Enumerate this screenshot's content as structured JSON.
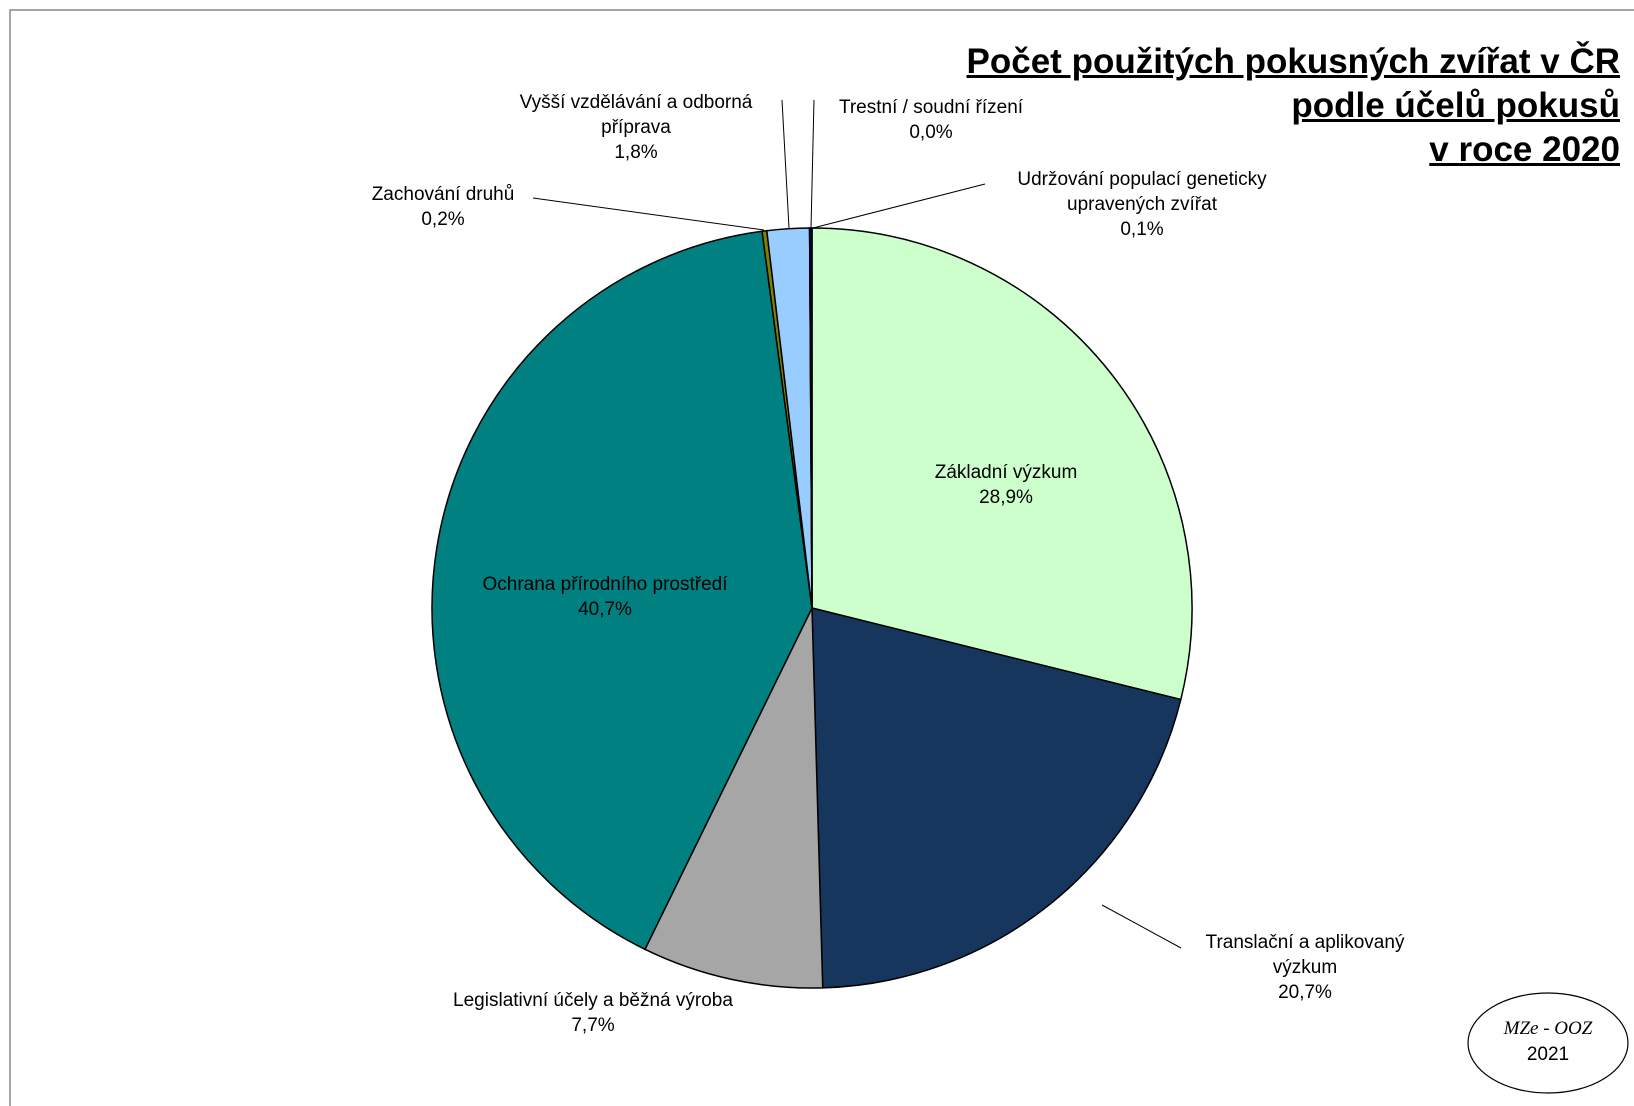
{
  "chart_data": {
    "type": "pie",
    "title": [
      "Počet použitých pokusných zvířat v ČR",
      "podle účelů pokusů",
      "v roce 2020"
    ],
    "categories": [
      "Základní výzkum",
      "Translační a aplikovaný výzkum",
      "Legislativní účely a běžná výroba",
      "Ochrana přírodního prostředí",
      "Zachování druhů",
      "Vyšší vzdělávání a odborná příprava",
      "Trestní / soudní řízení",
      "Udržování populací geneticky upravených zvířat"
    ],
    "values": [
      28.9,
      20.7,
      7.7,
      40.7,
      0.2,
      1.8,
      0.0,
      0.1
    ],
    "value_labels": [
      "28,9%",
      "20,7%",
      "7,7%",
      "40,7%",
      "0,2%",
      "1,8%",
      "0,0%",
      "0,1%"
    ],
    "colors": [
      "#ccffcc",
      "#17365d",
      "#a6a6a6",
      "#008080",
      "#808000",
      "#99ccff",
      "#ffffff",
      "#000080"
    ],
    "source": [
      "MZe - OOZ",
      "2021"
    ]
  }
}
